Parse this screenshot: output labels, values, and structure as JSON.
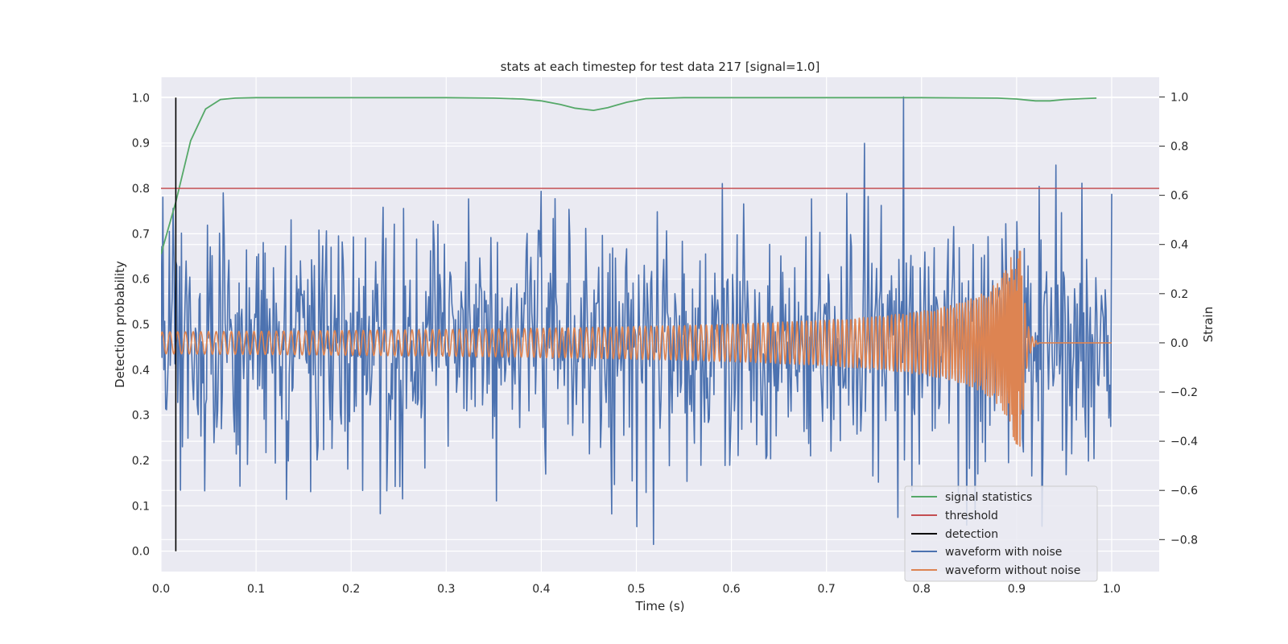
{
  "chart_data": {
    "type": "line",
    "title": "stats at each timestep for test data 217 [signal=1.0]",
    "xlabel": "Time (s)",
    "ylabel_left": "Detection probability",
    "ylabel_right": "Strain",
    "xlim": [
      0.0,
      1.05
    ],
    "ylim_left": [
      -0.045,
      1.045
    ],
    "ylim_right": [
      -0.93,
      1.08
    ],
    "xticks": [
      "0.0",
      "0.1",
      "0.2",
      "0.3",
      "0.4",
      "0.5",
      "0.6",
      "0.7",
      "0.8",
      "0.9",
      "1.0"
    ],
    "yticks_left": [
      "0.0",
      "0.1",
      "0.2",
      "0.3",
      "0.4",
      "0.5",
      "0.6",
      "0.7",
      "0.8",
      "0.9",
      "1.0"
    ],
    "yticks_right": [
      "−0.8",
      "−0.6",
      "−0.4",
      "−0.2",
      "0.0",
      "0.2",
      "0.4",
      "0.6",
      "0.8",
      "1.0"
    ],
    "grid": true,
    "legend_position": "bottom-right",
    "colors": {
      "plot_bg": "#eaeaf2",
      "grid": "#ffffff",
      "signal": "#55a868",
      "threshold": "#c44e52",
      "detection": "#000000",
      "noisy": "#4c72b0",
      "clean": "#dd8452"
    },
    "series": [
      {
        "name": "signal statistics",
        "axis": "left",
        "x": [
          0.0,
          0.0156,
          0.0312,
          0.0469,
          0.0625,
          0.0781,
          0.1,
          0.2,
          0.3,
          0.35,
          0.38,
          0.4,
          0.42,
          0.435,
          0.455,
          0.47,
          0.49,
          0.51,
          0.55,
          0.7,
          0.8,
          0.88,
          0.9,
          0.91,
          0.92,
          0.935,
          0.95,
          0.97,
          0.984
        ],
        "y": [
          0.655,
          0.77,
          0.905,
          0.975,
          0.996,
          0.999,
          1.0,
          1.0,
          1.0,
          0.999,
          0.997,
          0.993,
          0.985,
          0.977,
          0.972,
          0.978,
          0.99,
          0.998,
          1.0,
          1.0,
          1.0,
          0.999,
          0.997,
          0.995,
          0.993,
          0.993,
          0.996,
          0.998,
          0.999
        ]
      },
      {
        "name": "threshold",
        "axis": "left",
        "x": [
          0.0,
          1.05
        ],
        "y": [
          0.8,
          0.8
        ]
      },
      {
        "name": "detection",
        "axis": "left",
        "x": [
          0.0156,
          0.0156
        ],
        "y": [
          0.0,
          1.0
        ]
      },
      {
        "name": "waveform with noise",
        "axis": "right",
        "x_range": [
          0.0,
          1.0
        ],
        "sample_count": 1024,
        "amplitude_range": [
          -0.95,
          1.0
        ]
      },
      {
        "name": "waveform without noise",
        "axis": "right",
        "x_range": [
          0.0,
          1.0
        ],
        "merger_time": 0.905,
        "peak": [
          0.91,
          0.45
        ],
        "trough": [
          0.905,
          -0.4
        ]
      }
    ]
  }
}
